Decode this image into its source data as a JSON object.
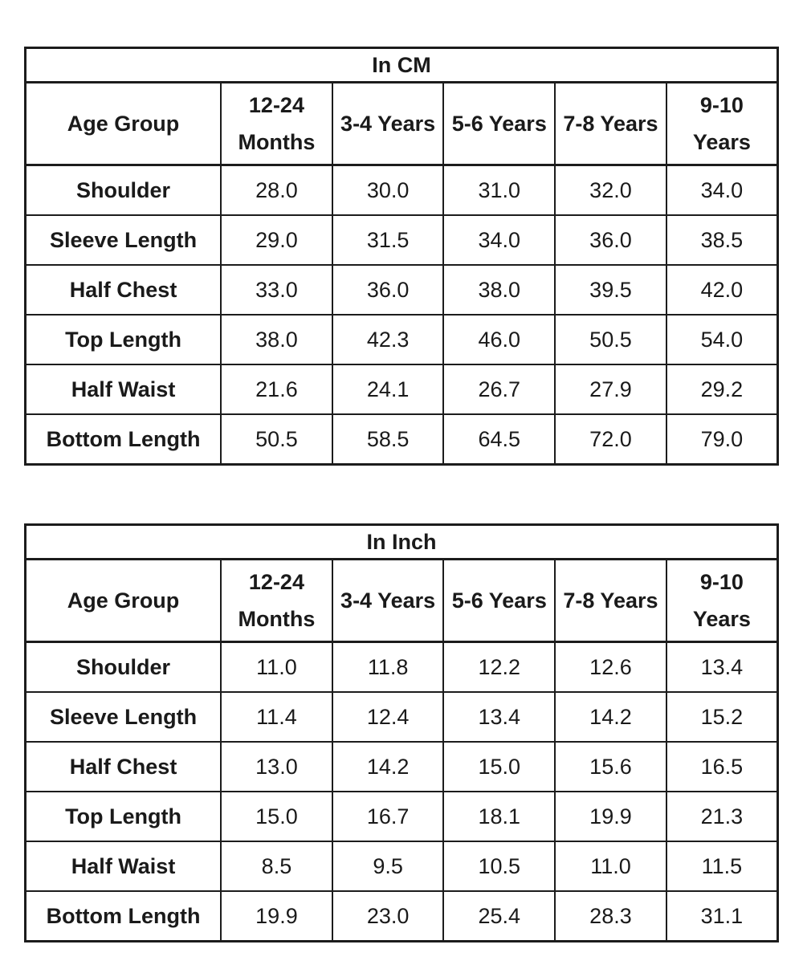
{
  "colors": {
    "background": "#ffffff",
    "text": "#1a1a1a",
    "border": "#1c1c1c"
  },
  "chart_data": [
    {
      "type": "table",
      "title": "In CM",
      "corner_header": "Age Group",
      "columns": [
        "12-24 Months",
        "3-4 Years",
        "5-6 Years",
        "7-8 Years",
        "9-10 Years"
      ],
      "rows": [
        {
          "label": "Shoulder",
          "values": [
            "28.0",
            "30.0",
            "31.0",
            "32.0",
            "34.0"
          ]
        },
        {
          "label": "Sleeve Length",
          "values": [
            "29.0",
            "31.5",
            "34.0",
            "36.0",
            "38.5"
          ]
        },
        {
          "label": "Half Chest",
          "values": [
            "33.0",
            "36.0",
            "38.0",
            "39.5",
            "42.0"
          ]
        },
        {
          "label": "Top Length",
          "values": [
            "38.0",
            "42.3",
            "46.0",
            "50.5",
            "54.0"
          ]
        },
        {
          "label": "Half Waist",
          "values": [
            "21.6",
            "24.1",
            "26.7",
            "27.9",
            "29.2"
          ]
        },
        {
          "label": "Bottom Length",
          "values": [
            "50.5",
            "58.5",
            "64.5",
            "72.0",
            "79.0"
          ]
        }
      ]
    },
    {
      "type": "table",
      "title": "In Inch",
      "corner_header": "Age Group",
      "columns": [
        "12-24 Months",
        "3-4 Years",
        "5-6 Years",
        "7-8 Years",
        "9-10 Years"
      ],
      "rows": [
        {
          "label": "Shoulder",
          "values": [
            "11.0",
            "11.8",
            "12.2",
            "12.6",
            "13.4"
          ]
        },
        {
          "label": "Sleeve Length",
          "values": [
            "11.4",
            "12.4",
            "13.4",
            "14.2",
            "15.2"
          ]
        },
        {
          "label": "Half Chest",
          "values": [
            "13.0",
            "14.2",
            "15.0",
            "15.6",
            "16.5"
          ]
        },
        {
          "label": "Top Length",
          "values": [
            "15.0",
            "16.7",
            "18.1",
            "19.9",
            "21.3"
          ]
        },
        {
          "label": "Half Waist",
          "values": [
            "8.5",
            "9.5",
            "10.5",
            "11.0",
            "11.5"
          ]
        },
        {
          "label": "Bottom Length",
          "values": [
            "19.9",
            "23.0",
            "25.4",
            "28.3",
            "31.1"
          ]
        }
      ]
    }
  ]
}
